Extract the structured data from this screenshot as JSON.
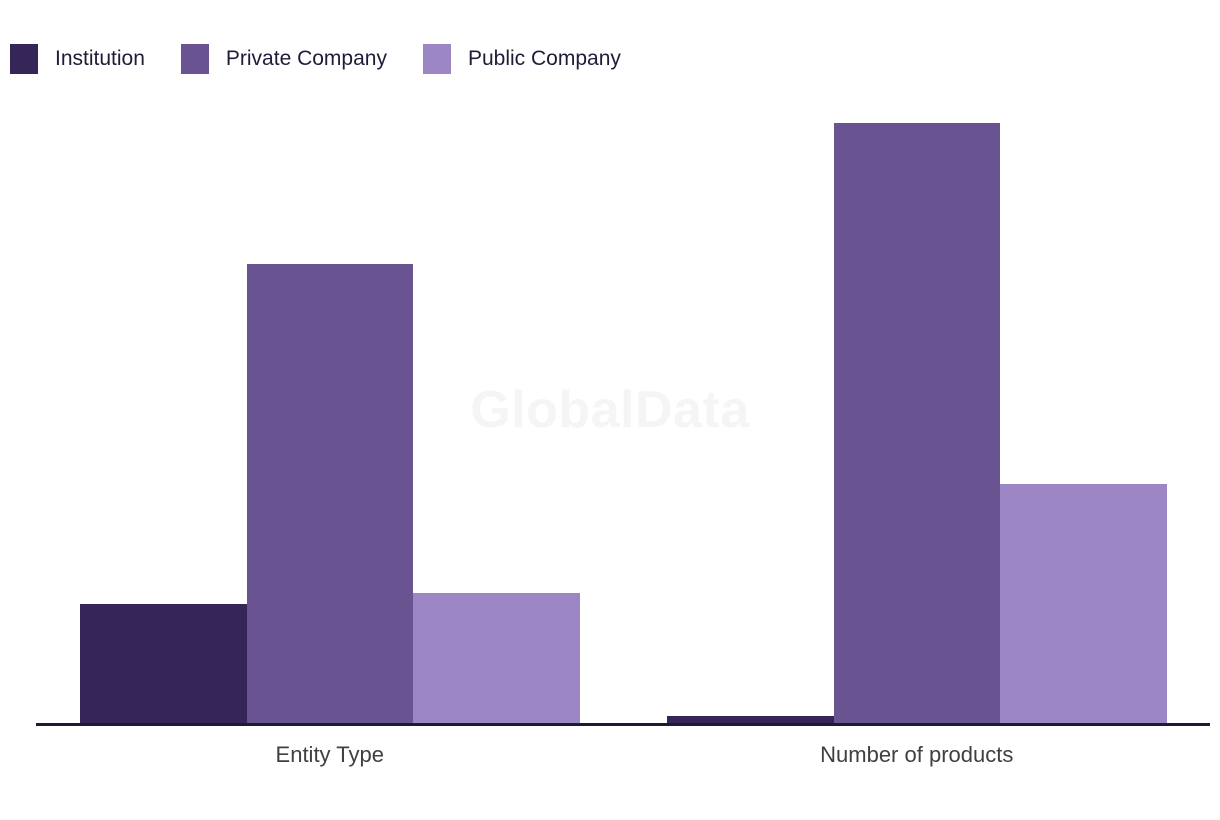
{
  "chart_data": {
    "type": "bar",
    "title": "",
    "xlabel": "",
    "ylabel": "",
    "categories": [
      "Entity Type",
      "Number of products"
    ],
    "series": [
      {
        "name": "Institution",
        "color": "#362657",
        "values": [
          19.8,
          1.2
        ]
      },
      {
        "name": "Private Company",
        "color": "#6a5391",
        "values": [
          76.5,
          100
        ]
      },
      {
        "name": "Public Company",
        "color": "#9c87c4",
        "values": [
          21.7,
          39.8
        ]
      }
    ],
    "ylim": [
      0,
      100
    ],
    "y_axis_visible": false,
    "grid": false,
    "legend_position": "top-left",
    "watermark": "GlobalData",
    "note": "No y-axis shown; values are relative heights with tallest bar = 100"
  },
  "colors": {
    "background": "#ffffff",
    "axis_line": "#1d1a33",
    "axis_label_text": "#404040",
    "legend_text": "#1e1d38",
    "watermark_text": "#f5f5f5"
  }
}
